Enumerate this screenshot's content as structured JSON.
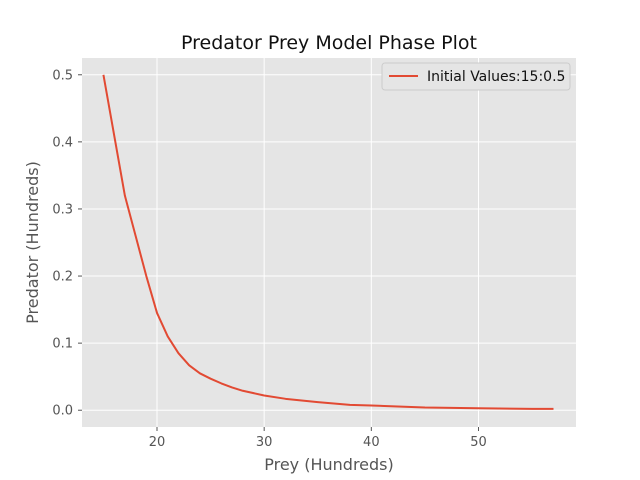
{
  "chart_data": {
    "type": "line",
    "title": "Predator Prey Model Phase Plot",
    "xlabel": "Prey (Hundreds)",
    "ylabel": "Predator (Hundreds)",
    "xlim": [
      13,
      59.1
    ],
    "ylim": [
      -0.025,
      0.525
    ],
    "xticks": [
      20,
      30,
      40,
      50
    ],
    "yticks": [
      0.0,
      0.1,
      0.2,
      0.3,
      0.4,
      0.5
    ],
    "xtick_labels": [
      "20",
      "30",
      "40",
      "50"
    ],
    "ytick_labels": [
      "0.0",
      "0.1",
      "0.2",
      "0.3",
      "0.4",
      "0.5"
    ],
    "grid": true,
    "legend_position": "upper-right",
    "series": [
      {
        "name": "Initial Values:15:0.5",
        "color": "#E24A33",
        "x": [
          15,
          16,
          17,
          18,
          19,
          20,
          21,
          22,
          23,
          24,
          25,
          26,
          27,
          28,
          30,
          32,
          35,
          38,
          40,
          45,
          50,
          55,
          57
        ],
        "y": [
          0.5,
          0.41,
          0.32,
          0.26,
          0.2,
          0.145,
          0.11,
          0.085,
          0.067,
          0.055,
          0.047,
          0.04,
          0.034,
          0.029,
          0.022,
          0.017,
          0.012,
          0.008,
          0.007,
          0.004,
          0.003,
          0.002,
          0.002
        ]
      }
    ]
  }
}
